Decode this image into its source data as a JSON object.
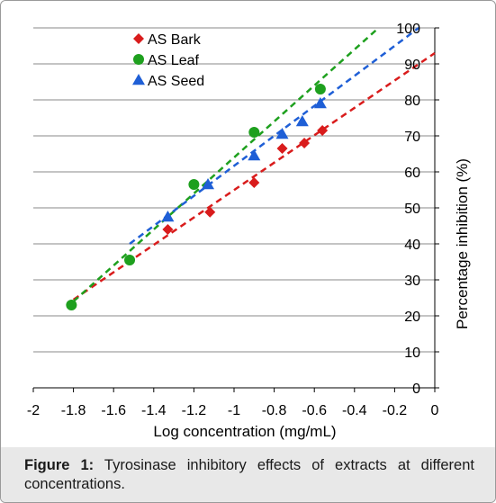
{
  "chart_data": {
    "type": "scatter",
    "title": "",
    "xlabel": "Log concentration (mg/mL)",
    "ylabel": "Percentage inhibition (%)",
    "xlim": [
      -2,
      0
    ],
    "ylim": [
      0,
      100
    ],
    "x_ticks": [
      "-2",
      "-1.8",
      "-1.6",
      "-1.4",
      "-1.2",
      "-1",
      "-0.8",
      "-0.6",
      "-0.4",
      "-0.2",
      "0"
    ],
    "y_ticks": [
      "0",
      "10",
      "20",
      "30",
      "40",
      "50",
      "60",
      "70",
      "80",
      "90",
      "100"
    ],
    "grid": "horizontal",
    "legend": "top-left",
    "series": [
      {
        "name": "AS Bark",
        "marker": "diamond",
        "color": "#d91c1c",
        "x": [
          -1.52,
          -1.33,
          -1.12,
          -0.9,
          -0.76,
          -0.65,
          -0.56
        ],
        "y": [
          35.5,
          44.0,
          48.8,
          57.0,
          66.5,
          68.0,
          71.5
        ],
        "trendline": {
          "x": [
            -1.8,
            0
          ],
          "y": [
            24.5,
            93.0
          ]
        }
      },
      {
        "name": "AS Leaf",
        "marker": "circle",
        "color": "#1ea01e",
        "x": [
          -1.81,
          -1.52,
          -1.2,
          -0.9,
          -0.57
        ],
        "y": [
          23.0,
          35.5,
          56.5,
          71.0,
          83.0
        ],
        "trendline": {
          "x": [
            -1.8,
            -0.28
          ],
          "y": [
            24.0,
            100.0
          ]
        }
      },
      {
        "name": "AS Seed",
        "marker": "triangle",
        "color": "#1f5fd6",
        "x": [
          -1.33,
          -1.13,
          -0.9,
          -0.76,
          -0.66,
          -0.57
        ],
        "y": [
          47.5,
          56.5,
          64.5,
          70.5,
          74.0,
          79.0
        ],
        "trendline": {
          "x": [
            -1.52,
            -0.08
          ],
          "y": [
            40.0,
            100.0
          ]
        }
      }
    ]
  },
  "caption": {
    "label": "Figure 1:",
    "text": " Tyrosinase inhibitory effects of extracts at different concentrations."
  }
}
